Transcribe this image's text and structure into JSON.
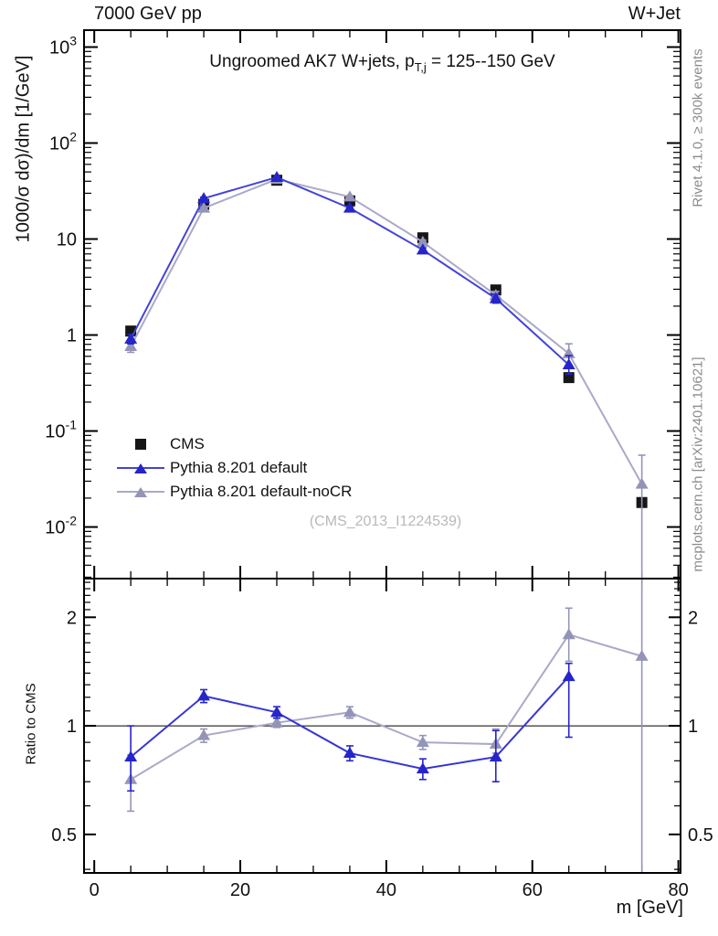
{
  "header": {
    "left": "7000 GeV pp",
    "right": "W+Jet"
  },
  "plot_title": {
    "prefix": "Ungroomed AK7 W+jets, p",
    "sub": "T,j",
    "suffix": " = 125--150 GeV"
  },
  "watermark": "(CMS_2013_I1224539)",
  "side_notes": {
    "top": "Rivet 4.1.0, ≥ 300k events",
    "bottom": "mcplots.cern.ch [arXiv:2401.10621]"
  },
  "axes": {
    "y_main_label": "1000/σ  dσ)/dm [1/GeV]",
    "y_ratio_label": "Ratio to CMS",
    "x_label": "m [GeV]"
  },
  "colors": {
    "cms": "#161616",
    "pythia_default": "#2525cb",
    "pythia_default_line": "#4343d8",
    "pythia_nocr": "#9494b8",
    "pythia_nocr_line": "#a9a9c9",
    "frame": "#000000",
    "watermark": "#b9b9b9",
    "side_note": "#8c8c8c"
  },
  "legend": [
    {
      "label": "CMS",
      "marker": "square",
      "color": "#161616",
      "line": false,
      "line_color": null
    },
    {
      "label": "Pythia 8.201 default",
      "marker": "triangle",
      "color": "#2525cb",
      "line": true,
      "line_color": "#4343d8"
    },
    {
      "label": "Pythia 8.201 default-noCR",
      "marker": "triangle",
      "color": "#9494b8",
      "line": true,
      "line_color": "#a9a9c9"
    }
  ],
  "chart_data": [
    {
      "id": "main",
      "type": "line",
      "title": "Ungroomed AK7 W+jets, p_{T,j} = 125--150 GeV",
      "ylabel": "1000/σ dσ)/dm [1/GeV]",
      "xlabel": "m [GeV]",
      "x_range": [
        -1.4,
        80.3
      ],
      "y_scale": "log",
      "y_range": [
        0.0029,
        1500
      ],
      "x_ticks": {
        "major": [
          0,
          20,
          40,
          60,
          80
        ],
        "minor_step": 5,
        "show_labels": false
      },
      "y_ticks": [
        {
          "v": 1000,
          "label": "10^3"
        },
        {
          "v": 100,
          "label": "10^2"
        },
        {
          "v": 10,
          "label": "10"
        },
        {
          "v": 1,
          "label": "1"
        },
        {
          "v": 0.1,
          "label": "10^-1"
        },
        {
          "v": 0.01,
          "label": "10^-2"
        }
      ],
      "series": [
        {
          "name": "CMS",
          "marker": "square",
          "color": "#161616",
          "line": false,
          "x": [
            5,
            15,
            25,
            35,
            45,
            55,
            65,
            75
          ],
          "values": [
            1.1,
            23,
            41,
            25,
            10.3,
            2.95,
            0.36,
            0.018
          ],
          "err_lo": [
            0,
            0,
            0,
            0,
            0,
            0,
            0,
            0
          ],
          "err_hi": [
            0,
            0,
            0,
            0,
            0,
            0,
            0,
            0
          ]
        },
        {
          "name": "Pythia 8.201 default-noCR",
          "marker": "triangle",
          "color": "#9494b8",
          "line": true,
          "line_color": "#a9a9c9",
          "x": [
            5,
            15,
            25,
            35,
            45,
            55,
            65,
            75
          ],
          "values": [
            0.76,
            21,
            42,
            27.5,
            9.3,
            2.6,
            0.64,
            0.028
          ],
          "err_lo": [
            0.1,
            0.7,
            1.2,
            0.9,
            0.45,
            0.25,
            0.15,
            0.0275
          ],
          "err_hi": [
            0.1,
            0.7,
            1.2,
            0.9,
            0.45,
            0.25,
            0.17,
            0.028
          ]
        },
        {
          "name": "Pythia 8.201 default",
          "marker": "triangle",
          "color": "#2525cb",
          "line": true,
          "line_color": "#4343d8",
          "x": [
            5,
            15,
            25,
            35,
            45,
            55,
            65
          ],
          "values": [
            0.91,
            26.5,
            44,
            21,
            7.7,
            2.4,
            0.49
          ],
          "err_lo": [
            0.1,
            0.8,
            1.2,
            0.8,
            0.4,
            0.25,
            0.1
          ],
          "err_hi": [
            0.1,
            0.8,
            1.2,
            0.8,
            0.4,
            0.25,
            0.12
          ]
        }
      ]
    },
    {
      "id": "ratio",
      "type": "line",
      "title": "",
      "ylabel": "Ratio to CMS",
      "xlabel": "m [GeV]",
      "x_range": [
        -1.4,
        80.3
      ],
      "y_scale": "log",
      "y_range": [
        0.391,
        2.56
      ],
      "unity_line": true,
      "x_ticks": {
        "major": [
          0,
          20,
          40,
          60,
          80
        ],
        "minor_step": 5,
        "show_labels": true
      },
      "y_ticks": [
        {
          "v": 2,
          "label": "2"
        },
        {
          "v": 1,
          "label": "1"
        },
        {
          "v": 0.5,
          "label": "0.5"
        }
      ],
      "y_minor_ticks": [
        0.4,
        0.6,
        0.7,
        0.8,
        0.9,
        1.1,
        1.2,
        1.3,
        1.4,
        1.5,
        1.6,
        1.7,
        1.8,
        1.9,
        2.1,
        2.2,
        2.3,
        2.4,
        2.5
      ],
      "series": [
        {
          "name": "Pythia 8.201 default-noCR",
          "marker": "triangle",
          "color": "#9494b8",
          "line": true,
          "line_color": "#a9a9c9",
          "x": [
            5,
            15,
            25,
            35,
            45,
            55,
            65,
            75
          ],
          "values": [
            0.71,
            0.94,
            1.02,
            1.09,
            0.9,
            0.89,
            1.79,
            1.56
          ],
          "err_lo": [
            0.13,
            0.04,
            0.03,
            0.04,
            0.04,
            0.05,
            0.28,
            1.3
          ],
          "err_hi": [
            0.12,
            0.04,
            0.03,
            0.04,
            0.04,
            0.09,
            0.33,
            1.3
          ]
        },
        {
          "name": "Pythia 8.201 default",
          "marker": "triangle",
          "color": "#2525cb",
          "line": true,
          "line_color": "#3636d4",
          "x": [
            5,
            15,
            25,
            35,
            45,
            55,
            65
          ],
          "values": [
            0.82,
            1.21,
            1.09,
            0.84,
            0.76,
            0.82,
            1.37
          ],
          "err_lo": [
            0.16,
            0.05,
            0.04,
            0.04,
            0.05,
            0.12,
            0.44
          ],
          "err_hi": [
            0.18,
            0.05,
            0.04,
            0.04,
            0.05,
            0.15,
            0.12
          ]
        }
      ]
    }
  ]
}
